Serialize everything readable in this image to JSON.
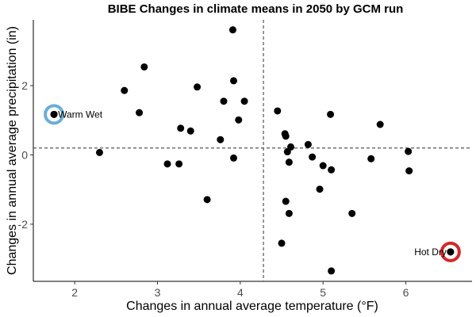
{
  "chart_data": {
    "type": "scatter",
    "title": "BIBE Changes in climate means in 2050 by GCM run",
    "xlabel": "Changes in annual average temperature (°F)",
    "ylabel": "Changes in annual average precipitation (in)",
    "xlim": [
      1.5,
      6.8
    ],
    "ylim": [
      -3.65,
      3.9
    ],
    "x_ticks": [
      2,
      3,
      4,
      5,
      6
    ],
    "y_ticks": [
      -2,
      0,
      2
    ],
    "y_tick_labels": [
      "-2",
      "0",
      "2"
    ],
    "grid": false,
    "reference_lines": {
      "x": 4.28,
      "y": 0.2
    },
    "points": [
      {
        "x": 1.75,
        "y": 1.17
      },
      {
        "x": 2.3,
        "y": 0.07
      },
      {
        "x": 2.6,
        "y": 1.86
      },
      {
        "x": 2.78,
        "y": 1.22
      },
      {
        "x": 2.84,
        "y": 2.54
      },
      {
        "x": 3.12,
        "y": -0.26
      },
      {
        "x": 3.26,
        "y": -0.26
      },
      {
        "x": 3.28,
        "y": 0.77
      },
      {
        "x": 3.4,
        "y": 0.69
      },
      {
        "x": 3.48,
        "y": 1.96
      },
      {
        "x": 3.6,
        "y": -1.29
      },
      {
        "x": 3.76,
        "y": 0.44
      },
      {
        "x": 3.8,
        "y": 1.55
      },
      {
        "x": 3.91,
        "y": 3.61
      },
      {
        "x": 3.92,
        "y": 2.14
      },
      {
        "x": 3.92,
        "y": -0.09
      },
      {
        "x": 3.98,
        "y": 1.01
      },
      {
        "x": 4.05,
        "y": 1.55
      },
      {
        "x": 4.45,
        "y": 1.27
      },
      {
        "x": 4.5,
        "y": -2.55
      },
      {
        "x": 4.54,
        "y": 0.61
      },
      {
        "x": 4.55,
        "y": 0.54
      },
      {
        "x": 4.55,
        "y": -1.34
      },
      {
        "x": 4.57,
        "y": 0.09
      },
      {
        "x": 4.59,
        "y": -0.21
      },
      {
        "x": 4.59,
        "y": -1.69
      },
      {
        "x": 4.61,
        "y": 0.23
      },
      {
        "x": 4.82,
        "y": 0.3
      },
      {
        "x": 4.87,
        "y": -0.06
      },
      {
        "x": 4.96,
        "y": -0.99
      },
      {
        "x": 5.0,
        "y": -0.31
      },
      {
        "x": 5.09,
        "y": 1.17
      },
      {
        "x": 5.1,
        "y": -0.43
      },
      {
        "x": 5.1,
        "y": -3.35
      },
      {
        "x": 5.35,
        "y": -1.69
      },
      {
        "x": 5.58,
        "y": -0.11
      },
      {
        "x": 5.69,
        "y": 0.88
      },
      {
        "x": 6.03,
        "y": 0.1
      },
      {
        "x": 6.04,
        "y": -0.46
      },
      {
        "x": 6.54,
        "y": -2.8
      }
    ],
    "highlights": [
      {
        "label": "Warm Wet",
        "x": 1.75,
        "y": 1.17,
        "color": "#6baed6",
        "label_side": "right"
      },
      {
        "label": "Hot Dry",
        "x": 6.54,
        "y": -2.8,
        "color": "#d62728",
        "label_side": "left"
      }
    ],
    "point_color": "#000000",
    "reference_line_color": "#555555"
  }
}
